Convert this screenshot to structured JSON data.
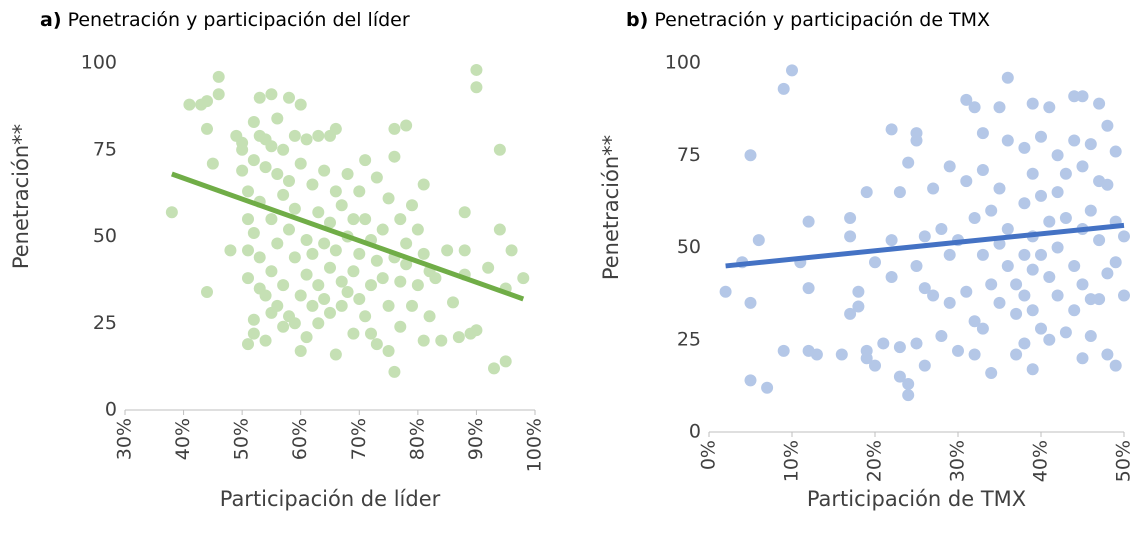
{
  "chart_data": [
    {
      "type": "scatter",
      "panel": "a)",
      "title": "Penetración y participación del líder",
      "xlabel": "Participación de líder",
      "ylabel": "Penetración**",
      "xlim": [
        30,
        100
      ],
      "xticks": [
        {
          "value": 30,
          "label": "30%"
        },
        {
          "value": 40,
          "label": "40%"
        },
        {
          "value": 50,
          "label": "50%"
        },
        {
          "value": 60,
          "label": "60%"
        },
        {
          "value": 70,
          "label": "70%"
        },
        {
          "value": 80,
          "label": "80%"
        },
        {
          "value": 90,
          "label": "90%"
        },
        {
          "value": 100,
          "label": "100%"
        }
      ],
      "ylim": [
        0,
        100
      ],
      "yticks": [
        0,
        25,
        50,
        75,
        100
      ],
      "color": "#c5e0b4",
      "x": [
        38,
        41,
        43,
        44,
        44,
        45,
        44,
        46,
        46,
        48,
        49,
        50,
        50,
        50,
        51,
        51,
        51,
        51,
        51,
        52,
        52,
        52,
        52,
        52,
        53,
        53,
        53,
        53,
        53,
        54,
        54,
        54,
        54,
        55,
        55,
        55,
        55,
        55,
        56,
        56,
        56,
        56,
        57,
        57,
        57,
        57,
        58,
        58,
        58,
        58,
        59,
        59,
        59,
        59,
        60,
        60,
        60,
        60,
        61,
        61,
        61,
        61,
        62,
        62,
        62,
        63,
        63,
        63,
        63,
        64,
        64,
        64,
        65,
        65,
        65,
        65,
        66,
        66,
        66,
        66,
        67,
        67,
        67,
        68,
        68,
        68,
        69,
        69,
        69,
        70,
        70,
        70,
        71,
        71,
        71,
        72,
        72,
        72,
        73,
        73,
        73,
        74,
        74,
        75,
        75,
        75,
        76,
        76,
        76,
        76,
        77,
        77,
        77,
        78,
        78,
        78,
        79,
        79,
        80,
        80,
        81,
        81,
        81,
        82,
        82,
        83,
        84,
        85,
        86,
        87,
        88,
        88,
        88,
        89,
        90,
        90,
        90,
        92,
        93,
        94,
        94,
        95,
        95,
        96,
        98
      ],
      "values": [
        57,
        88,
        88,
        89,
        81,
        71,
        34,
        96,
        91,
        46,
        79,
        77,
        75,
        69,
        63,
        55,
        46,
        38,
        19,
        83,
        72,
        51,
        26,
        22,
        90,
        79,
        60,
        44,
        35,
        78,
        70,
        33,
        20,
        91,
        76,
        55,
        40,
        28,
        84,
        68,
        48,
        30,
        75,
        62,
        36,
        24,
        90,
        66,
        52,
        27,
        79,
        58,
        44,
        25,
        88,
        71,
        33,
        17,
        78,
        49,
        39,
        21,
        65,
        45,
        30,
        79,
        57,
        36,
        25,
        69,
        48,
        32,
        79,
        54,
        41,
        28,
        81,
        63,
        46,
        16,
        59,
        37,
        30,
        68,
        50,
        34,
        55,
        40,
        22,
        63,
        45,
        32,
        72,
        55,
        27,
        49,
        36,
        22,
        67,
        43,
        19,
        52,
        38,
        61,
        30,
        17,
        81,
        73,
        44,
        11,
        55,
        37,
        24,
        82,
        48,
        42,
        59,
        30,
        52,
        36,
        65,
        45,
        20,
        40,
        27,
        38,
        20,
        46,
        31,
        21,
        57,
        46,
        39,
        22,
        98,
        93,
        23,
        41,
        12,
        52,
        75,
        14,
        35,
        46,
        38
      ],
      "trendline": {
        "color": "#70ad47",
        "x": [
          38,
          98
        ],
        "values": [
          68,
          32
        ]
      }
    },
    {
      "type": "scatter",
      "panel": "b)",
      "title": "Penetración y participación de TMX",
      "xlabel": "Participación de TMX",
      "ylabel": "Penetración**",
      "xlim": [
        0,
        50
      ],
      "xticks": [
        {
          "value": 0,
          "label": "0%"
        },
        {
          "value": 10,
          "label": "10%"
        },
        {
          "value": 20,
          "label": "20%"
        },
        {
          "value": 30,
          "label": "30%"
        },
        {
          "value": 40,
          "label": "40%"
        },
        {
          "value": 50,
          "label": "50%"
        }
      ],
      "ylim": [
        0,
        100
      ],
      "yticks": [
        0,
        25,
        50,
        75,
        100
      ],
      "color": "#b4c7e7",
      "x": [
        2,
        4,
        5,
        5,
        5,
        6,
        7,
        9,
        9,
        10,
        11,
        12,
        12,
        12,
        13,
        16,
        17,
        17,
        17,
        18,
        18,
        19,
        19,
        19,
        20,
        20,
        21,
        22,
        22,
        22,
        23,
        23,
        23,
        24,
        24,
        24,
        25,
        25,
        25,
        25,
        26,
        26,
        26,
        27,
        27,
        28,
        28,
        29,
        29,
        29,
        30,
        30,
        31,
        31,
        31,
        32,
        32,
        32,
        32,
        33,
        33,
        33,
        33,
        34,
        34,
        34,
        35,
        35,
        35,
        35,
        36,
        36,
        36,
        36,
        37,
        37,
        37,
        38,
        38,
        38,
        38,
        38,
        39,
        39,
        39,
        39,
        39,
        39,
        40,
        40,
        40,
        40,
        41,
        41,
        41,
        41,
        42,
        42,
        42,
        42,
        43,
        43,
        43,
        44,
        44,
        44,
        44,
        45,
        45,
        45,
        45,
        45,
        46,
        46,
        46,
        46,
        47,
        47,
        47,
        47,
        48,
        48,
        48,
        48,
        49,
        49,
        49,
        49,
        50,
        50
      ],
      "values": [
        38,
        46,
        14,
        35,
        75,
        52,
        12,
        22,
        93,
        98,
        46,
        22,
        57,
        39,
        21,
        21,
        58,
        53,
        32,
        38,
        34,
        65,
        22,
        20,
        46,
        18,
        24,
        52,
        82,
        42,
        65,
        23,
        15,
        13,
        73,
        10,
        79,
        81,
        45,
        24,
        39,
        53,
        18,
        66,
        37,
        55,
        26,
        72,
        35,
        48,
        52,
        22,
        90,
        68,
        38,
        88,
        58,
        30,
        21,
        81,
        71,
        48,
        28,
        60,
        40,
        16,
        66,
        51,
        35,
        88,
        79,
        55,
        45,
        96,
        40,
        32,
        21,
        77,
        62,
        48,
        37,
        24,
        89,
        70,
        53,
        44,
        33,
        17,
        80,
        64,
        48,
        28,
        88,
        57,
        42,
        25,
        75,
        65,
        50,
        37,
        70,
        58,
        27,
        91,
        79,
        45,
        33,
        91,
        72,
        55,
        40,
        20,
        78,
        60,
        36,
        26,
        89,
        68,
        52,
        36,
        83,
        67,
        43,
        21,
        76,
        57,
        46,
        18,
        53,
        37
      ],
      "trendline": {
        "color": "#4472c4",
        "x": [
          2,
          50
        ],
        "values": [
          45,
          56
        ]
      }
    }
  ]
}
